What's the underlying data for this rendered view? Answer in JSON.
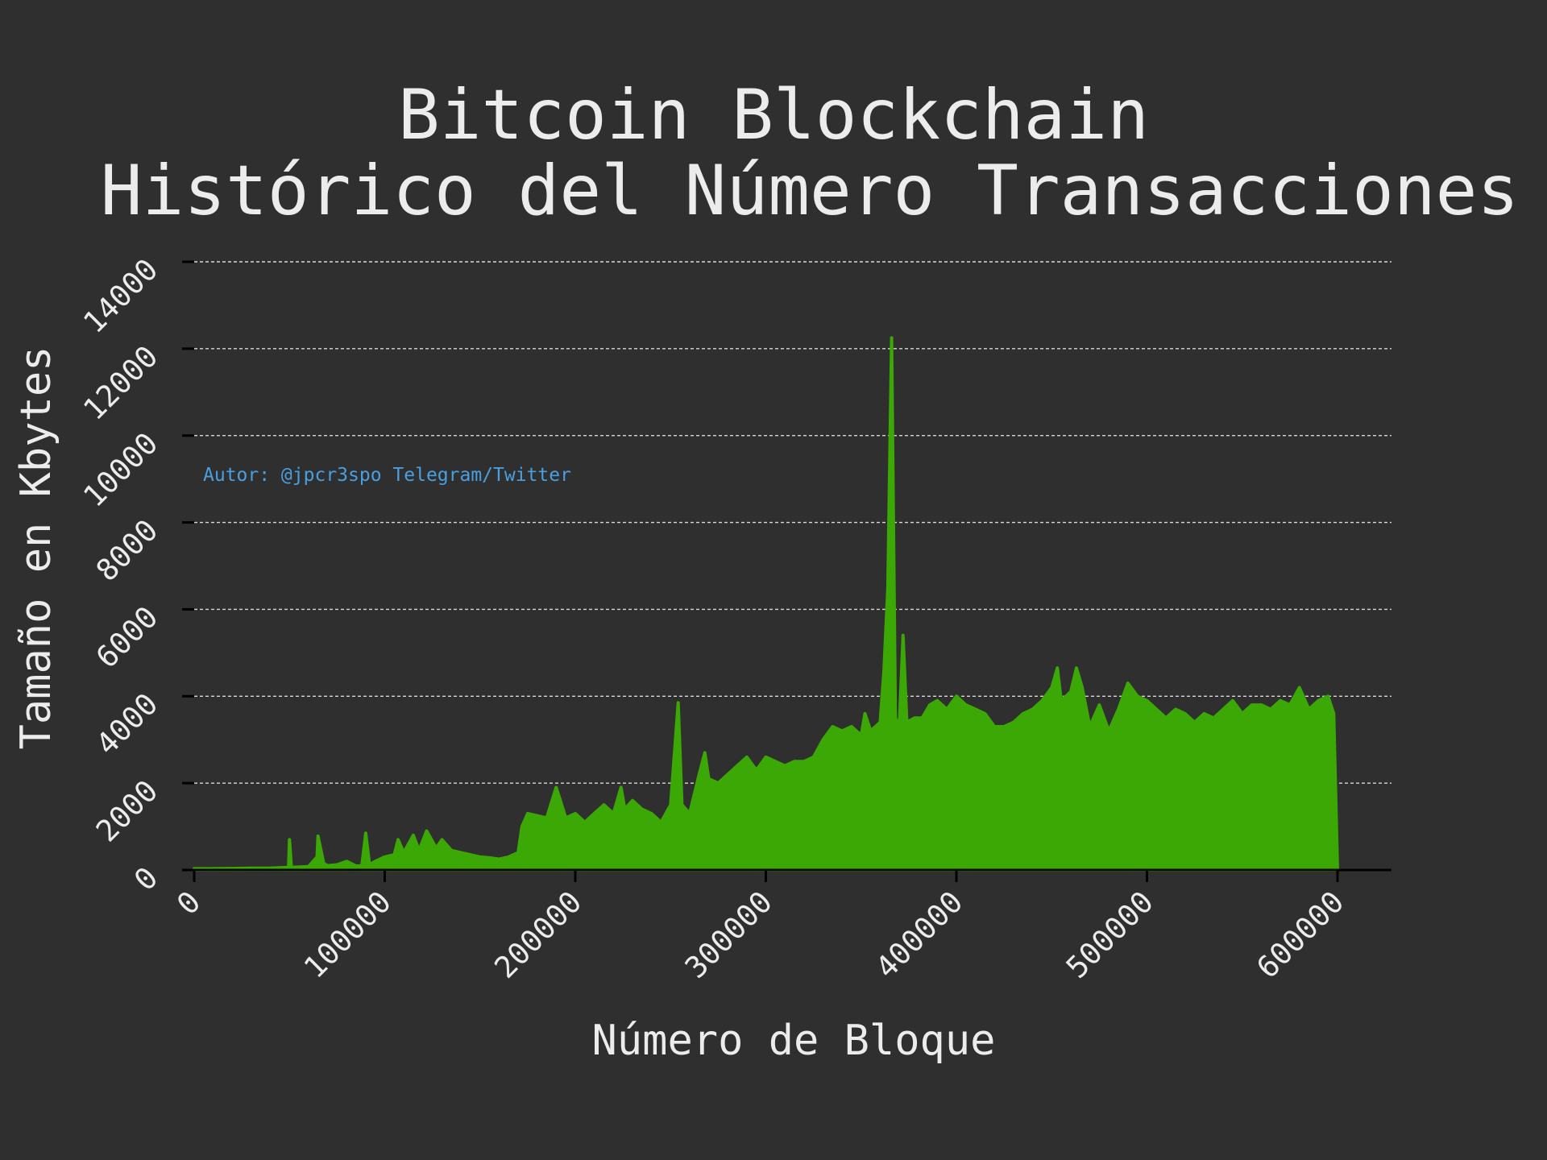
{
  "chart_data": {
    "type": "area",
    "title": [
      "Bitcoin Blockchain",
      "Histórico del Número Transacciones"
    ],
    "xlabel": "Número de Bloque",
    "ylabel": "Tamaño en Kbytes",
    "annotation": "Autor: @jpcr3spo Telegram/Twitter",
    "xlim": [
      0,
      600000
    ],
    "ylim": [
      0,
      14000
    ],
    "xticks": [
      "0",
      "100000",
      "200000",
      "300000",
      "400000",
      "500000",
      "600000"
    ],
    "yticks": [
      "0",
      "2000",
      "4000",
      "6000",
      "8000",
      "10000",
      "12000",
      "14000"
    ],
    "grid": "horizontal dashed",
    "fill_color": "#3ca805",
    "annotation_color": "#4a9fe0",
    "series": [
      {
        "x": [
          0,
          10000,
          20000,
          30000,
          40000,
          49500,
          50000,
          51000,
          60000,
          64500,
          65000,
          68000,
          70000,
          75000,
          80000,
          85000,
          88000,
          90000,
          92000,
          95000,
          100000,
          105000,
          107000,
          110000,
          115000,
          118000,
          122000,
          127000,
          130000,
          135000,
          140000,
          145000,
          150000,
          155000,
          160000,
          165000,
          170000,
          172000,
          175000,
          180000,
          185000,
          190000,
          195000,
          200000,
          205000,
          210000,
          215000,
          220000,
          224000,
          226000,
          230000,
          235000,
          240000,
          245000,
          250000,
          254000,
          256000,
          260000,
          265000,
          268000,
          270000,
          275000,
          280000,
          285000,
          290000,
          295000,
          300000,
          305000,
          310000,
          315000,
          320000,
          325000,
          330000,
          335000,
          340000,
          345000,
          350000,
          352000,
          355000,
          360000,
          362000,
          364000,
          366000,
          368000,
          370000,
          372000,
          374000,
          378000,
          382000,
          386000,
          390000,
          395000,
          400000,
          405000,
          410000,
          415000,
          420000,
          425000,
          430000,
          435000,
          440000,
          445000,
          450000,
          453000,
          455000,
          460000,
          463000,
          466000,
          470000,
          475000,
          480000,
          485000,
          490000,
          495000,
          500000,
          505000,
          510000,
          515000,
          520000,
          525000,
          530000,
          535000,
          540000,
          545000,
          550000,
          555000,
          560000,
          565000,
          570000,
          575000,
          580000,
          585000,
          590000,
          595000,
          598000,
          600000
        ],
        "y": [
          30,
          30,
          35,
          40,
          45,
          60,
          700,
          60,
          80,
          300,
          780,
          150,
          100,
          120,
          200,
          90,
          100,
          850,
          120,
          200,
          300,
          350,
          700,
          400,
          800,
          450,
          900,
          500,
          700,
          450,
          400,
          350,
          300,
          280,
          250,
          300,
          400,
          1000,
          1300,
          1250,
          1200,
          1900,
          1200,
          1300,
          1100,
          1300,
          1500,
          1300,
          1900,
          1400,
          1600,
          1400,
          1300,
          1100,
          1500,
          3850,
          1500,
          1300,
          2200,
          2700,
          2100,
          2000,
          2200,
          2400,
          2600,
          2300,
          2600,
          2500,
          2400,
          2500,
          2500,
          2600,
          3000,
          3300,
          3200,
          3300,
          3100,
          3600,
          3200,
          3400,
          4600,
          6500,
          12250,
          3500,
          3300,
          5400,
          3400,
          3500,
          3500,
          3800,
          3900,
          3700,
          4000,
          3800,
          3700,
          3600,
          3300,
          3300,
          3400,
          3600,
          3700,
          3900,
          4200,
          4650,
          3900,
          4100,
          4650,
          4200,
          3300,
          3800,
          3200,
          3700,
          4300,
          4000,
          3900,
          3700,
          3500,
          3700,
          3600,
          3400,
          3600,
          3500,
          3700,
          3900,
          3600,
          3800,
          3800,
          3700,
          3900,
          3800,
          4200,
          3700,
          3900,
          4000,
          3600,
          0
        ]
      }
    ]
  }
}
